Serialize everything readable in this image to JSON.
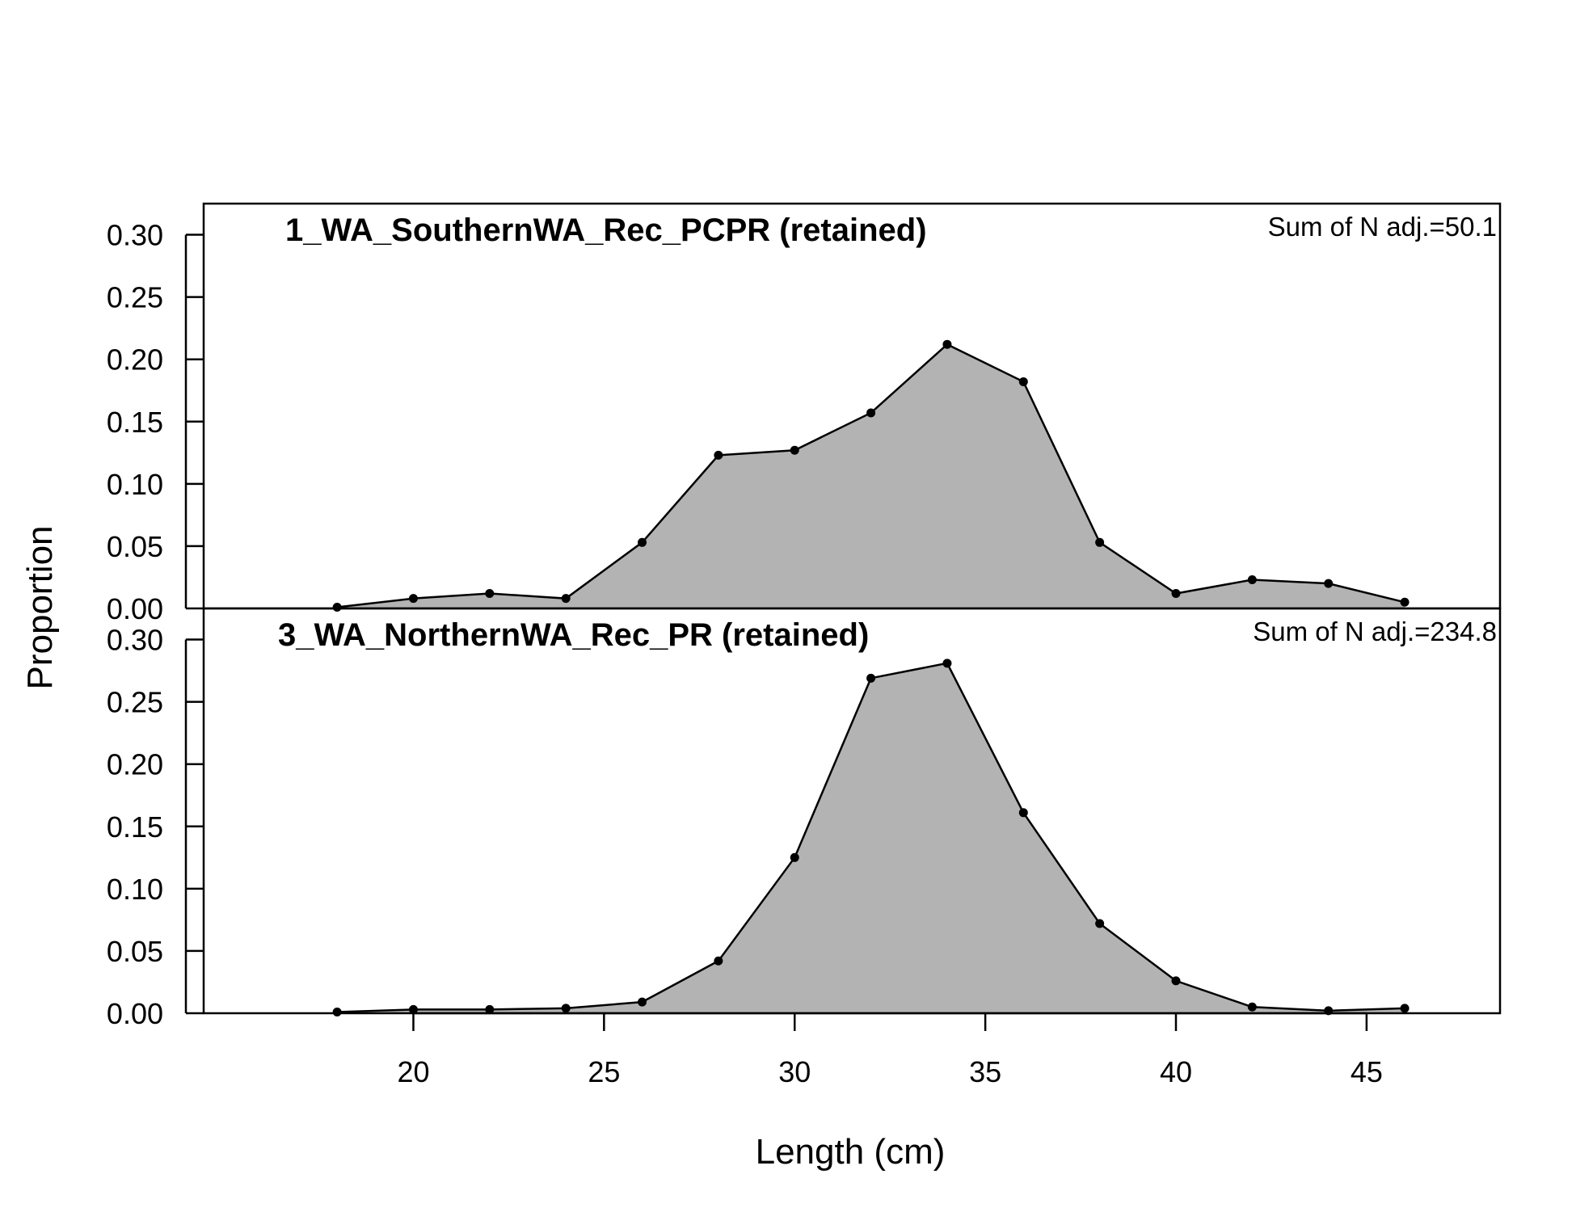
{
  "chart_data": {
    "type": "area",
    "xlabel": "Length (cm)",
    "ylabel": "Proportion",
    "xlim": [
      14.5,
      48.5
    ],
    "ylim": [
      0,
      0.325
    ],
    "x_ticks": [
      "20",
      "25",
      "30",
      "35",
      "40",
      "45"
    ],
    "y_ticks": [
      "0.00",
      "0.05",
      "0.10",
      "0.15",
      "0.20",
      "0.25",
      "0.30"
    ],
    "fill_color": "#b3b3b3",
    "line_color": "#000000",
    "panels": [
      {
        "title": "1_WA_SouthernWA_Rec_PCPR (retained)",
        "note": "Sum of N adj.=50.1",
        "x": [
          18,
          20,
          22,
          24,
          26,
          28,
          30,
          32,
          34,
          36,
          38,
          40,
          42,
          44,
          46
        ],
        "values": [
          0.001,
          0.008,
          0.012,
          0.008,
          0.053,
          0.123,
          0.127,
          0.157,
          0.212,
          0.182,
          0.053,
          0.012,
          0.023,
          0.02,
          0.005
        ]
      },
      {
        "title": "3_WA_NorthernWA_Rec_PR (retained)",
        "note": "Sum of N adj.=234.8",
        "x": [
          18,
          20,
          22,
          24,
          26,
          28,
          30,
          32,
          34,
          36,
          38,
          40,
          42,
          44,
          46
        ],
        "values": [
          0.001,
          0.003,
          0.003,
          0.004,
          0.009,
          0.042,
          0.125,
          0.269,
          0.281,
          0.161,
          0.072,
          0.026,
          0.005,
          0.002,
          0.004
        ]
      }
    ]
  }
}
